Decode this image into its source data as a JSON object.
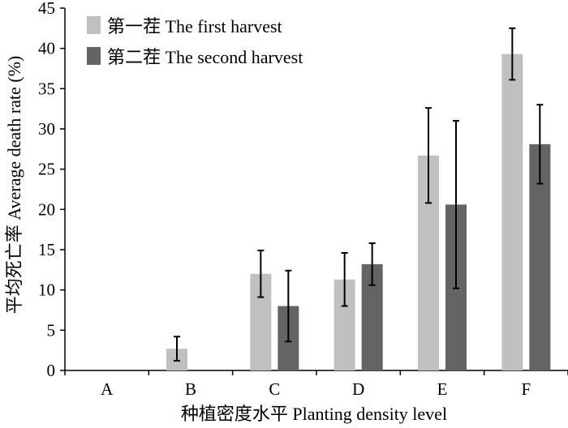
{
  "chart_data": {
    "type": "bar",
    "categories": [
      "A",
      "B",
      "C",
      "D",
      "E",
      "F"
    ],
    "series": [
      {
        "name": "第一茬 The first harvest",
        "color": "#c0c0c0",
        "values": [
          0,
          2.7,
          12.0,
          11.3,
          26.7,
          39.3
        ],
        "errors": [
          0,
          1.5,
          2.9,
          3.3,
          5.9,
          3.2
        ]
      },
      {
        "name": "第二茬 The second harvest",
        "color": "#646464",
        "values": [
          0,
          0,
          8.0,
          13.2,
          20.6,
          28.1
        ],
        "errors": [
          0,
          0,
          4.4,
          2.6,
          10.4,
          4.9
        ]
      }
    ],
    "xlabel": "种植密度水平 Planting density level",
    "ylabel": "平均死亡率 Average death rate (%)",
    "ylim": [
      0,
      45
    ],
    "yticks": [
      0,
      5,
      10,
      15,
      20,
      25,
      30,
      35,
      40,
      45
    ],
    "grid": false,
    "legend": "top-left"
  }
}
